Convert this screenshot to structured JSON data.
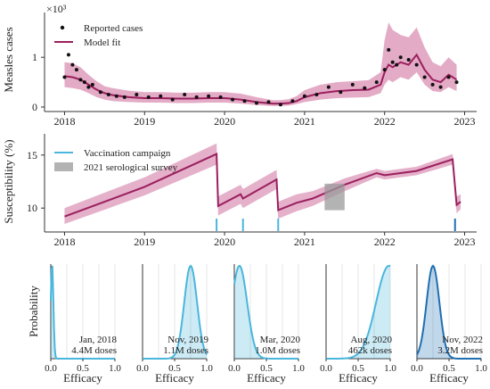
{
  "colors": {
    "model": "#9b1f5e",
    "band": "#d98fb3",
    "points": "#111111",
    "campaign_light": "#4ab6dc",
    "campaign_dark": "#1f6fb2",
    "survey": "#999999",
    "axis": "#333333"
  },
  "chart_data": [
    {
      "type": "line",
      "ylabel": "Measles cases",
      "y_scale_label": "×10³",
      "x_ticks": [
        "2018",
        "2019",
        "2020",
        "2021",
        "2022",
        "2023"
      ],
      "y_ticks": [
        "0",
        "1"
      ],
      "ylim": [
        0,
        1.9
      ],
      "xlim": [
        2017.75,
        2023.15
      ],
      "legend": [
        "Reported cases",
        "Model fit"
      ],
      "legend_position": "top-left",
      "series": [
        {
          "name": "Model fit",
          "x": [
            2018.0,
            2018.1,
            2018.2,
            2018.3,
            2018.4,
            2018.5,
            2018.6,
            2018.8,
            2019.0,
            2019.2,
            2019.4,
            2019.6,
            2019.8,
            2020.0,
            2020.2,
            2020.4,
            2020.6,
            2020.7,
            2020.8,
            2020.9,
            2021.0,
            2021.2,
            2021.4,
            2021.6,
            2021.8,
            2021.95,
            2022.0,
            2022.05,
            2022.1,
            2022.2,
            2022.3,
            2022.4,
            2022.5,
            2022.6,
            2022.7,
            2022.8,
            2022.9
          ],
          "values": [
            0.62,
            0.6,
            0.55,
            0.45,
            0.35,
            0.28,
            0.24,
            0.2,
            0.18,
            0.18,
            0.17,
            0.17,
            0.18,
            0.18,
            0.15,
            0.1,
            0.07,
            0.07,
            0.08,
            0.12,
            0.2,
            0.28,
            0.32,
            0.34,
            0.35,
            0.45,
            0.7,
            0.85,
            0.8,
            0.9,
            0.85,
            1.05,
            0.75,
            0.55,
            0.5,
            0.65,
            0.55
          ],
          "lower": [
            0.4,
            0.38,
            0.35,
            0.28,
            0.2,
            0.15,
            0.12,
            0.1,
            0.09,
            0.09,
            0.08,
            0.08,
            0.09,
            0.09,
            0.07,
            0.04,
            0.02,
            0.02,
            0.03,
            0.06,
            0.1,
            0.15,
            0.18,
            0.19,
            0.2,
            0.28,
            0.45,
            0.55,
            0.5,
            0.6,
            0.55,
            0.7,
            0.45,
            0.32,
            0.3,
            0.4,
            0.32
          ],
          "upper": [
            0.9,
            0.88,
            0.8,
            0.65,
            0.52,
            0.42,
            0.38,
            0.33,
            0.3,
            0.3,
            0.29,
            0.29,
            0.3,
            0.3,
            0.27,
            0.2,
            0.14,
            0.14,
            0.16,
            0.22,
            0.34,
            0.45,
            0.5,
            0.52,
            0.54,
            0.7,
            1.35,
            1.7,
            1.55,
            1.45,
            1.4,
            1.6,
            1.2,
            0.9,
            0.82,
            1.0,
            0.85
          ]
        },
        {
          "name": "Reported cases",
          "x": [
            2018.0,
            2018.05,
            2018.1,
            2018.15,
            2018.2,
            2018.25,
            2018.3,
            2018.35,
            2018.45,
            2018.55,
            2018.65,
            2018.75,
            2018.9,
            2019.05,
            2019.2,
            2019.35,
            2019.5,
            2019.65,
            2019.8,
            2019.95,
            2020.1,
            2020.25,
            2020.4,
            2020.55,
            2020.7,
            2020.85,
            2021.0,
            2021.15,
            2021.3,
            2021.45,
            2021.6,
            2021.75,
            2021.9,
            2022.0,
            2022.05,
            2022.1,
            2022.15,
            2022.2,
            2022.3,
            2022.4,
            2022.5,
            2022.6,
            2022.7,
            2022.8,
            2022.9
          ],
          "values": [
            0.6,
            1.05,
            0.85,
            0.75,
            0.55,
            0.5,
            0.4,
            0.45,
            0.3,
            0.25,
            0.22,
            0.2,
            0.25,
            0.2,
            0.22,
            0.15,
            0.25,
            0.2,
            0.22,
            0.2,
            0.15,
            0.12,
            0.08,
            0.1,
            0.05,
            0.12,
            0.22,
            0.25,
            0.4,
            0.3,
            0.45,
            0.38,
            0.5,
            0.75,
            1.15,
            0.9,
            0.85,
            1.0,
            0.95,
            0.85,
            0.6,
            0.45,
            0.4,
            0.6,
            0.5
          ]
        }
      ]
    },
    {
      "type": "line",
      "ylabel": "Susceptibility (%)",
      "x_ticks": [
        "2018",
        "2019",
        "2020",
        "2021",
        "2022",
        "2023"
      ],
      "y_ticks": [
        "10",
        "15"
      ],
      "ylim": [
        8,
        17
      ],
      "xlim": [
        2017.75,
        2023.15
      ],
      "legend": [
        "Vaccination campaign",
        "2021 serological survey"
      ],
      "legend_position": "top-left",
      "series": [
        {
          "name": "Model fit",
          "x": [
            2018.0,
            2019.0,
            2019.9,
            2019.92,
            2020.2,
            2020.23,
            2020.65,
            2020.67,
            2020.9,
            2021.1,
            2021.5,
            2021.9,
            2022.0,
            2022.4,
            2022.85,
            2022.9,
            2022.95
          ],
          "values": [
            9.2,
            12.0,
            15.1,
            10.2,
            11.3,
            10.9,
            12.7,
            9.8,
            10.5,
            10.9,
            12.2,
            13.3,
            13.1,
            13.5,
            14.6,
            10.3,
            10.6
          ],
          "lower": [
            8.5,
            11.2,
            14.1,
            9.3,
            10.4,
            10.0,
            11.8,
            9.0,
            9.7,
            10.2,
            11.6,
            12.9,
            12.7,
            13.1,
            14.1,
            9.5,
            9.9
          ],
          "upper": [
            10.0,
            12.9,
            16.1,
            11.1,
            12.2,
            11.8,
            13.6,
            10.6,
            11.3,
            11.6,
            12.8,
            13.7,
            13.5,
            13.9,
            15.1,
            11.1,
            11.3
          ]
        }
      ],
      "campaign_dates": [
        2019.9,
        2020.23,
        2020.67,
        2022.88
      ],
      "survey": {
        "x_range": [
          2021.25,
          2021.5
        ],
        "y_range": [
          9.8,
          12.3
        ]
      }
    },
    {
      "type": "area",
      "panels": [
        {
          "date": "Jan, 2018",
          "doses": "4.4M doses",
          "peak": 0.02,
          "spread": 0.02,
          "color": "campaign_light",
          "xlabel": "Efficacy",
          "ylabel": "Probability",
          "x_ticks": [
            "0.0",
            "0.5",
            "1.0"
          ]
        },
        {
          "date": "Nov, 2019",
          "doses": "1.1M doses",
          "peak": 0.75,
          "spread": 0.1,
          "color": "campaign_light",
          "xlabel": "Efficacy",
          "x_ticks": [
            "0.0",
            "0.5",
            "1.0"
          ]
        },
        {
          "date": "Mar, 2020",
          "doses": "1.0M doses",
          "peak": 0.08,
          "spread": 0.12,
          "color": "campaign_light",
          "xlabel": "Efficacy",
          "x_ticks": [
            "0.0",
            "0.5",
            "1.0"
          ]
        },
        {
          "date": "Aug, 2020",
          "doses": "462k doses",
          "peak": 0.98,
          "spread": 0.2,
          "color": "campaign_light",
          "xlabel": "Efficacy",
          "x_ticks": [
            "0.0",
            "0.5",
            "1.0"
          ]
        },
        {
          "date": "Nov, 2022",
          "doses": "3.2M doses",
          "peak": 0.25,
          "spread": 0.1,
          "color": "campaign_dark",
          "xlabel": "Efficacy",
          "x_ticks": [
            "0.0",
            "0.5",
            "1.0"
          ]
        }
      ]
    }
  ]
}
